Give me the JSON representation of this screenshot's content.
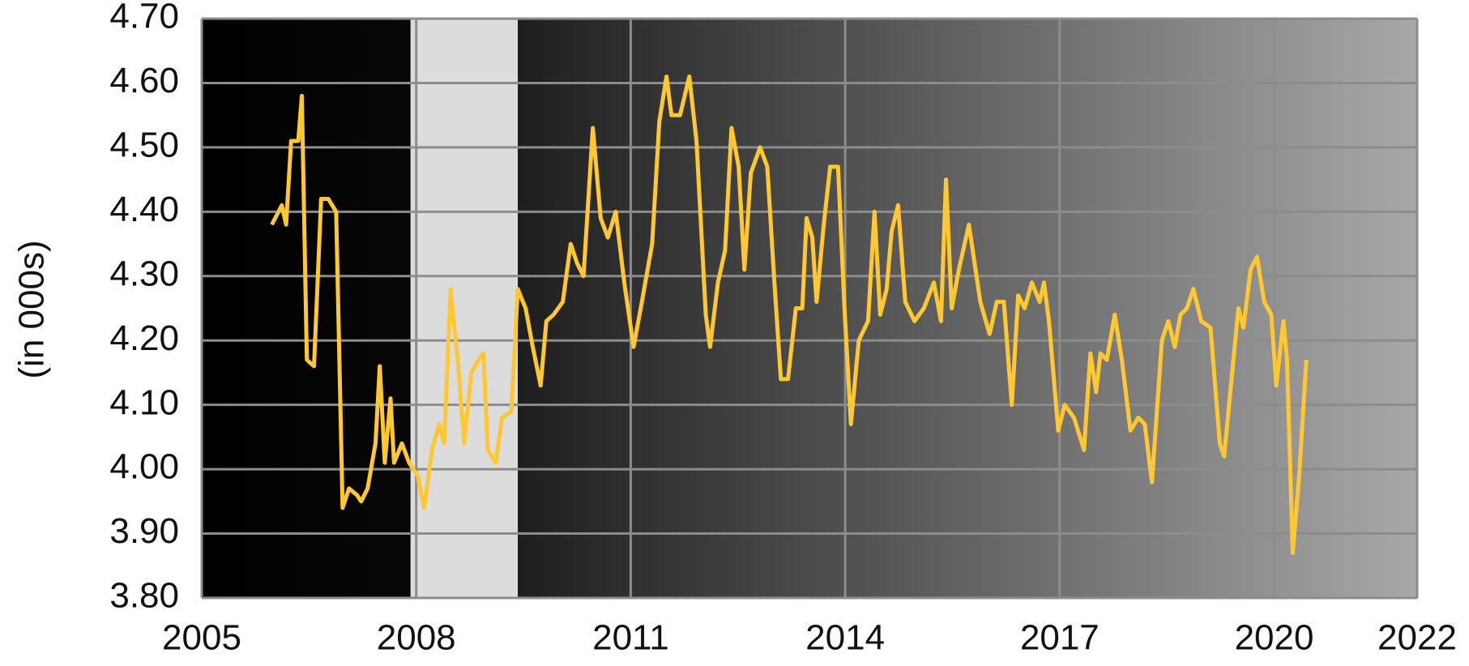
{
  "chart_data": {
    "type": "line",
    "y_label": "(in 000s)",
    "color": "#ffc832",
    "grid": true,
    "shaded_regions": [
      [
        2007.92,
        2009.42
      ]
    ],
    "xlim": [
      2005,
      2022
    ],
    "xticks": [
      2005,
      2008,
      2011,
      2014,
      2017,
      2020,
      2022
    ],
    "ylim": [
      3.8,
      4.7
    ],
    "yticks": [
      {
        "value": 3.8,
        "label": "3.80"
      },
      {
        "value": 3.9,
        "label": "3.90"
      },
      {
        "value": 4.0,
        "label": "4.00"
      },
      {
        "value": 4.1,
        "label": "4.10"
      },
      {
        "value": 4.2,
        "label": "4.20"
      },
      {
        "value": 4.3,
        "label": "4.30"
      },
      {
        "value": 4.4,
        "label": "4.40"
      },
      {
        "value": 4.5,
        "label": "4.50"
      },
      {
        "value": 4.6,
        "label": "4.60"
      },
      {
        "value": 4.7,
        "label": "4.70"
      }
    ],
    "x": [
      2005.98,
      2006.12,
      2006.18,
      2006.25,
      2006.35,
      2006.4,
      2006.47,
      2006.57,
      2006.67,
      2006.77,
      2006.88,
      2006.97,
      2007.06,
      2007.17,
      2007.23,
      2007.32,
      2007.43,
      2007.49,
      2007.56,
      2007.64,
      2007.69,
      2007.8,
      2007.9,
      2008.02,
      2008.11,
      2008.22,
      2008.32,
      2008.39,
      2008.48,
      2008.58,
      2008.67,
      2008.77,
      2008.87,
      2008.94,
      2009.0,
      2009.11,
      2009.2,
      2009.33,
      2009.42,
      2009.53,
      2009.63,
      2009.74,
      2009.82,
      2009.92,
      2010.05,
      2010.16,
      2010.25,
      2010.34,
      2010.47,
      2010.58,
      2010.68,
      2010.79,
      2010.91,
      2011.04,
      2011.14,
      2011.3,
      2011.4,
      2011.5,
      2011.57,
      2011.69,
      2011.82,
      2011.92,
      2012.05,
      2012.11,
      2012.22,
      2012.32,
      2012.41,
      2012.51,
      2012.59,
      2012.68,
      2012.81,
      2012.91,
      2013.01,
      2013.1,
      2013.2,
      2013.31,
      2013.4,
      2013.46,
      2013.54,
      2013.6,
      2013.7,
      2013.79,
      2013.9,
      2013.99,
      2014.08,
      2014.19,
      2014.32,
      2014.41,
      2014.49,
      2014.58,
      2014.65,
      2014.74,
      2014.84,
      2014.97,
      2015.1,
      2015.24,
      2015.34,
      2015.41,
      2015.49,
      2015.59,
      2015.73,
      2015.89,
      2016.02,
      2016.12,
      2016.22,
      2016.33,
      2016.42,
      2016.51,
      2016.61,
      2016.72,
      2016.78,
      2016.85,
      2016.98,
      2017.07,
      2017.2,
      2017.34,
      2017.43,
      2017.51,
      2017.57,
      2017.66,
      2017.77,
      2017.87,
      2017.99,
      2018.1,
      2018.19,
      2018.29,
      2018.43,
      2018.52,
      2018.61,
      2018.69,
      2018.78,
      2018.87,
      2018.98,
      2019.11,
      2019.24,
      2019.3,
      2019.5,
      2019.57,
      2019.67,
      2019.76,
      2019.86,
      2019.96,
      2020.03,
      2020.13,
      2020.18,
      2020.26,
      2020.35,
      2020.45
    ],
    "values": [
      4.38,
      4.41,
      4.38,
      4.51,
      4.51,
      4.58,
      4.17,
      4.16,
      4.42,
      4.42,
      4.4,
      3.94,
      3.97,
      3.96,
      3.95,
      3.97,
      4.04,
      4.16,
      4.01,
      4.11,
      4.01,
      4.04,
      4.01,
      3.99,
      3.94,
      4.03,
      4.07,
      4.04,
      4.28,
      4.17,
      4.04,
      4.15,
      4.17,
      4.18,
      4.03,
      4.01,
      4.08,
      4.09,
      4.28,
      4.25,
      4.19,
      4.13,
      4.23,
      4.24,
      4.26,
      4.35,
      4.32,
      4.3,
      4.53,
      4.39,
      4.36,
      4.4,
      4.29,
      4.19,
      4.25,
      4.35,
      4.54,
      4.61,
      4.55,
      4.55,
      4.61,
      4.51,
      4.24,
      4.19,
      4.29,
      4.34,
      4.53,
      4.47,
      4.31,
      4.46,
      4.5,
      4.47,
      4.29,
      4.14,
      4.14,
      4.25,
      4.25,
      4.39,
      4.36,
      4.26,
      4.38,
      4.47,
      4.47,
      4.25,
      4.07,
      4.2,
      4.23,
      4.4,
      4.24,
      4.28,
      4.37,
      4.41,
      4.26,
      4.23,
      4.25,
      4.29,
      4.23,
      4.45,
      4.25,
      4.31,
      4.38,
      4.26,
      4.21,
      4.26,
      4.26,
      4.1,
      4.27,
      4.25,
      4.29,
      4.26,
      4.29,
      4.23,
      4.06,
      4.1,
      4.08,
      4.03,
      4.18,
      4.12,
      4.18,
      4.17,
      4.24,
      4.17,
      4.06,
      4.08,
      4.07,
      3.98,
      4.2,
      4.23,
      4.19,
      4.24,
      4.25,
      4.28,
      4.23,
      4.22,
      4.04,
      4.02,
      4.25,
      4.22,
      4.31,
      4.33,
      4.26,
      4.24,
      4.13,
      4.23,
      4.17,
      3.87,
      3.99,
      4.17
    ]
  }
}
